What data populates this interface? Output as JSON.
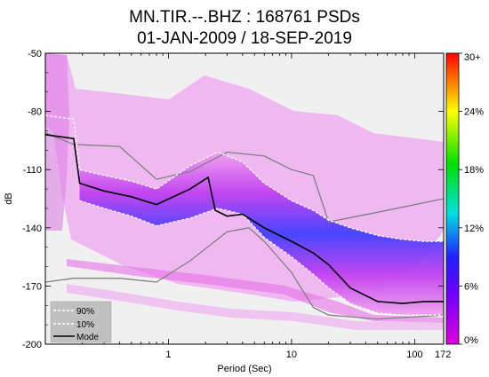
{
  "chart_data": {
    "type": "heatmap",
    "title": "MN.TIR.--.BHZ : 168761 PSDs",
    "subtitle": "01-JAN-2009 / 18-SEP-2019",
    "xlabel": "Period (Sec)",
    "ylabel": "dB",
    "x_scale": "log",
    "xlim": [
      0.1,
      172
    ],
    "ylim": [
      -200,
      -50
    ],
    "x_ticks": [
      {
        "value": 1,
        "label": "1"
      },
      {
        "value": 10,
        "label": "10"
      },
      {
        "value": 100,
        "label": "100"
      },
      {
        "value": 172,
        "label": "172"
      }
    ],
    "y_ticks": [
      {
        "value": -50,
        "label": "-50"
      },
      {
        "value": -80,
        "label": "-80"
      },
      {
        "value": -110,
        "label": "-110"
      },
      {
        "value": -140,
        "label": "-140"
      },
      {
        "value": -170,
        "label": "-170"
      },
      {
        "value": -200,
        "label": "-200"
      }
    ],
    "colorbar": {
      "ticks": [
        "30+",
        "24%",
        "18%",
        "12%",
        "6%",
        "0%"
      ],
      "colors": [
        "#e000e0",
        "#2020ff",
        "#00e0e0",
        "#00e000",
        "#ffff00",
        "#ff0000"
      ]
    },
    "legend": {
      "position": "bottom-left",
      "entries": [
        {
          "label": "90%",
          "style": "dashed",
          "color": "#ffffff"
        },
        {
          "label": "10%",
          "style": "dashed",
          "color": "#ffffff"
        },
        {
          "label": "Mode",
          "style": "solid",
          "color": "#000000"
        }
      ]
    },
    "series": [
      {
        "key": "p90",
        "color": "#ffffff",
        "dash": true,
        "points": [
          [
            0.1,
            -82
          ],
          [
            0.17,
            -84
          ],
          [
            0.19,
            -110
          ],
          [
            0.3,
            -113
          ],
          [
            0.5,
            -116
          ],
          [
            0.8,
            -120
          ],
          [
            1.5,
            -108
          ],
          [
            2.5,
            -101
          ],
          [
            4,
            -106
          ],
          [
            6,
            -117
          ],
          [
            10,
            -126
          ],
          [
            15,
            -131
          ],
          [
            20,
            -136
          ],
          [
            30,
            -140
          ],
          [
            50,
            -144
          ],
          [
            80,
            -146
          ],
          [
            120,
            -147
          ],
          [
            172,
            -147
          ]
        ]
      },
      {
        "key": "p10",
        "color": "#ffffff",
        "dash": true,
        "points": [
          [
            0.19,
            -126
          ],
          [
            0.3,
            -130
          ],
          [
            0.5,
            -134
          ],
          [
            0.8,
            -139
          ],
          [
            1.5,
            -135
          ],
          [
            2.5,
            -130
          ],
          [
            4,
            -133
          ],
          [
            6,
            -145
          ],
          [
            10,
            -155
          ],
          [
            15,
            -164
          ],
          [
            20,
            -171
          ],
          [
            30,
            -179
          ],
          [
            50,
            -184
          ],
          [
            80,
            -185
          ],
          [
            120,
            -185
          ],
          [
            172,
            -185
          ]
        ]
      },
      {
        "key": "mode",
        "color": "#000000",
        "dash": false,
        "points": [
          [
            0.1,
            -92
          ],
          [
            0.17,
            -94
          ],
          [
            0.19,
            -117
          ],
          [
            0.3,
            -121
          ],
          [
            0.5,
            -124
          ],
          [
            0.8,
            -128
          ],
          [
            1.5,
            -120
          ],
          [
            2.1,
            -114
          ],
          [
            2.4,
            -131
          ],
          [
            3,
            -134
          ],
          [
            4,
            -133
          ],
          [
            6,
            -140
          ],
          [
            10,
            -147
          ],
          [
            15,
            -153
          ],
          [
            20,
            -159
          ],
          [
            30,
            -171
          ],
          [
            50,
            -178
          ],
          [
            80,
            -179
          ],
          [
            120,
            -178
          ],
          [
            172,
            -178
          ]
        ]
      },
      {
        "key": "nhnm",
        "color": "#808080",
        "dash": false,
        "points": [
          [
            0.1,
            -91
          ],
          [
            0.17,
            -97
          ],
          [
            0.4,
            -98
          ],
          [
            0.8,
            -115
          ],
          [
            1.5,
            -111
          ],
          [
            3,
            -101
          ],
          [
            6,
            -103
          ],
          [
            10,
            -110
          ],
          [
            15,
            -113
          ],
          [
            20,
            -137
          ],
          [
            50,
            -132
          ],
          [
            172,
            -125
          ]
        ]
      },
      {
        "key": "nlnm",
        "color": "#808080",
        "dash": false,
        "points": [
          [
            0.1,
            -168
          ],
          [
            0.17,
            -166
          ],
          [
            0.4,
            -166
          ],
          [
            0.8,
            -168
          ],
          [
            1.5,
            -157
          ],
          [
            3,
            -142
          ],
          [
            4.5,
            -140
          ],
          [
            6,
            -147
          ],
          [
            10,
            -163
          ],
          [
            15,
            -181
          ],
          [
            20,
            -185
          ],
          [
            50,
            -187
          ],
          [
            172,
            -185
          ]
        ]
      }
    ]
  }
}
